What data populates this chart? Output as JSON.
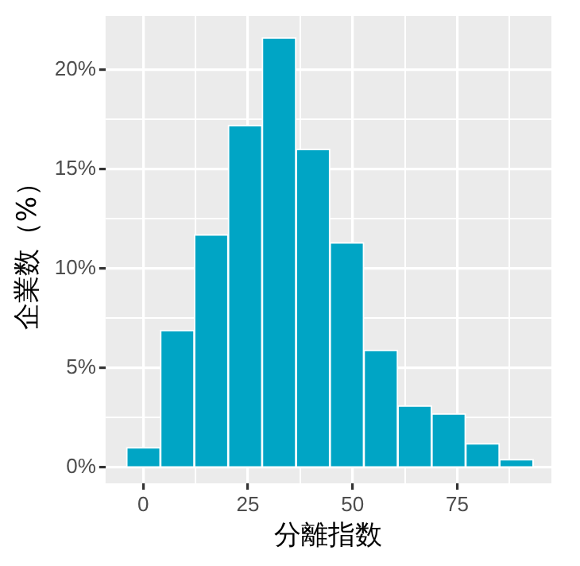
{
  "chart_data": {
    "type": "histogram",
    "xlabel": "分離指数",
    "ylabel": "企業数（%）",
    "bins": [
      -4,
      4.1,
      12.2,
      20.3,
      28.4,
      36.5,
      44.6,
      52.7,
      60.8,
      68.9,
      77,
      85.1,
      93.2
    ],
    "values": [
      1.0,
      6.9,
      11.7,
      17.2,
      21.6,
      16.0,
      11.3,
      5.9,
      3.1,
      2.7,
      1.2,
      0.4
    ],
    "color": "#00a5c5",
    "xlim": [
      -9,
      97.5
    ],
    "xticks": [
      0,
      {
        "value": 12.5,
        "label": null
      },
      25,
      {
        "value": 37.5,
        "label": null
      },
      50,
      {
        "value": 62.5,
        "label": null
      },
      75,
      {
        "value": 87.5,
        "label": null
      }
    ],
    "ylim": [
      -0.8,
      22.7
    ],
    "yticks": [
      {
        "value": 0,
        "label": "0%"
      },
      {
        "value": 2.5,
        "label": null
      },
      {
        "value": 5,
        "label": "5%"
      },
      {
        "value": 7.5,
        "label": null
      },
      {
        "value": 10,
        "label": "10%"
      },
      {
        "value": 12.5,
        "label": null
      },
      {
        "value": 15,
        "label": "15%"
      },
      {
        "value": 17.5,
        "label": null
      },
      {
        "value": 20,
        "label": "20%"
      }
    ],
    "grid": true
  }
}
